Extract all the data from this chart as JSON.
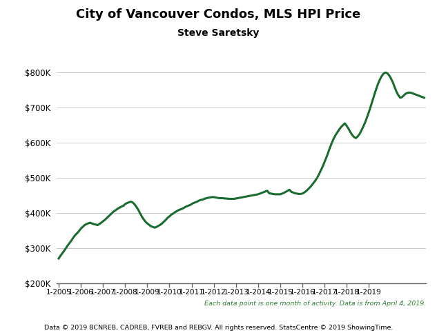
{
  "title": "City of Vancouver Condos, MLS HPI Price",
  "subtitle": "Steve Saretsky",
  "line_color": "#1a6b2e",
  "line_width": 2.2,
  "background_color": "#ffffff",
  "ylim": [
    200000,
    830000
  ],
  "yticks": [
    200000,
    300000,
    400000,
    500000,
    600000,
    700000,
    800000
  ],
  "footnote1": "Each data point is one month of activity. Data is from April 4, 2019.",
  "footnote2": "Data © 2019 BCNREB, CADREB, FVREB and REBGV. All rights reserved. StatsCentre © 2019 ShowingTime.",
  "footnote1_color": "#2e7d32",
  "footnote2_color": "#000000",
  "xtick_labels": [
    "1-2005",
    "1-2006",
    "1-2007",
    "1-2008",
    "1-2009",
    "1-2010",
    "1-2011",
    "1-2012",
    "1-2013",
    "1-2014",
    "1-2015",
    "1-2016",
    "1-2017",
    "1-2018",
    "1-2019"
  ],
  "values": [
    270000,
    278000,
    285000,
    292000,
    300000,
    308000,
    315000,
    322000,
    330000,
    337000,
    342000,
    348000,
    355000,
    360000,
    365000,
    368000,
    370000,
    372000,
    370000,
    368000,
    367000,
    365000,
    368000,
    372000,
    376000,
    380000,
    385000,
    390000,
    395000,
    400000,
    405000,
    408000,
    412000,
    415000,
    418000,
    420000,
    425000,
    428000,
    430000,
    432000,
    430000,
    425000,
    418000,
    410000,
    400000,
    390000,
    382000,
    375000,
    370000,
    366000,
    362000,
    360000,
    358000,
    360000,
    363000,
    366000,
    370000,
    375000,
    380000,
    386000,
    390000,
    395000,
    398000,
    402000,
    405000,
    408000,
    410000,
    412000,
    415000,
    418000,
    420000,
    422000,
    425000,
    428000,
    430000,
    432000,
    435000,
    437000,
    438000,
    440000,
    442000,
    443000,
    444000,
    445000,
    445000,
    444000,
    443000,
    442000,
    442000,
    442000,
    441000,
    441000,
    440000,
    440000,
    440000,
    440000,
    441000,
    442000,
    443000,
    444000,
    445000,
    446000,
    447000,
    448000,
    449000,
    450000,
    451000,
    452000,
    453000,
    455000,
    457000,
    459000,
    461000,
    463000,
    456000,
    455000,
    454000,
    453000,
    453000,
    453000,
    453000,
    455000,
    457000,
    460000,
    463000,
    466000,
    460000,
    458000,
    456000,
    455000,
    454000,
    454000,
    455000,
    458000,
    462000,
    467000,
    472000,
    478000,
    485000,
    492000,
    500000,
    510000,
    521000,
    532000,
    545000,
    558000,
    572000,
    587000,
    600000,
    612000,
    622000,
    630000,
    638000,
    645000,
    650000,
    655000,
    648000,
    640000,
    630000,
    622000,
    616000,
    613000,
    618000,
    625000,
    635000,
    646000,
    658000,
    672000,
    687000,
    703000,
    720000,
    737000,
    753000,
    768000,
    780000,
    790000,
    797000,
    800000,
    798000,
    792000,
    783000,
    772000,
    758000,
    745000,
    735000,
    728000,
    730000,
    735000,
    740000,
    742000,
    743000,
    742000,
    740000,
    738000,
    736000,
    734000,
    732000,
    730000,
    728000
  ]
}
